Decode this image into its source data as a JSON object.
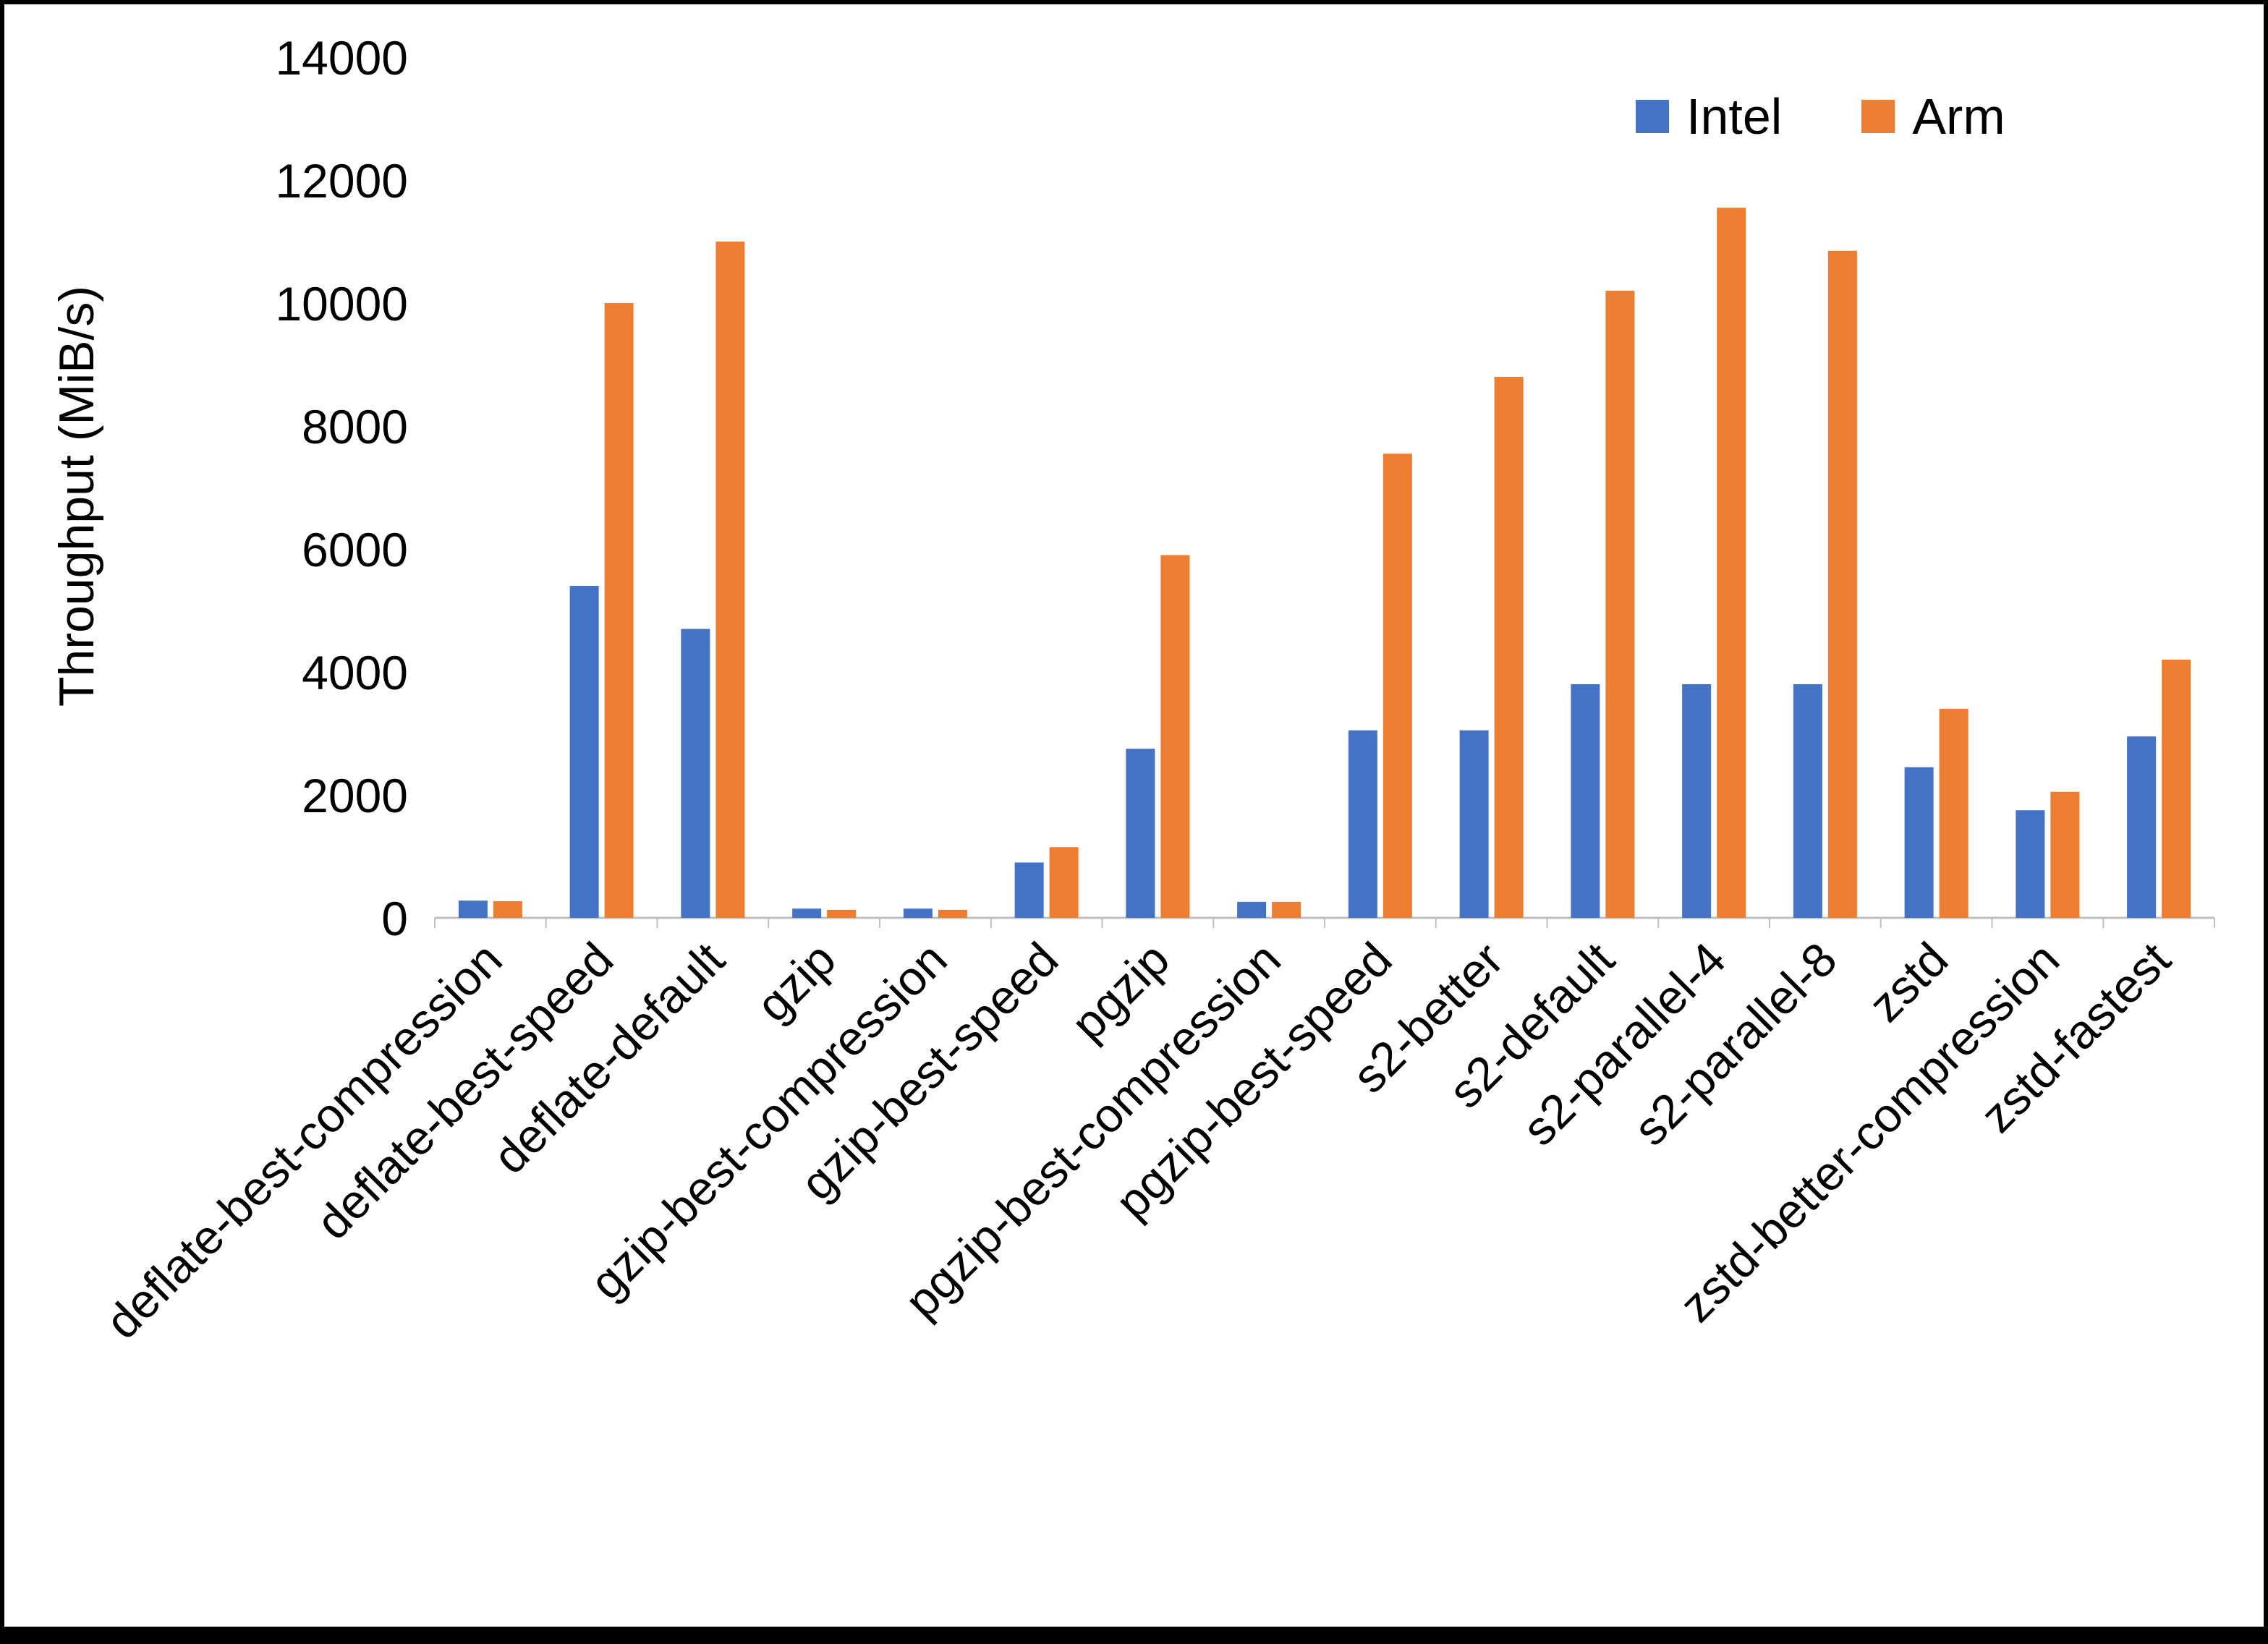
{
  "chart_data": {
    "type": "bar",
    "title": "",
    "xlabel": "",
    "ylabel": "Throughput (MiB/s)",
    "ylim": [
      0,
      14000
    ],
    "yticks": [
      0,
      2000,
      4000,
      6000,
      8000,
      10000,
      12000,
      14000
    ],
    "grid": false,
    "legend_position": "top-right",
    "categories": [
      "deflate-best-compression",
      "deflate-best-speed",
      "deflate-default",
      "gzip",
      "gzip-best-compression",
      "gzip-best-speed",
      "pgzip",
      "pgzip-best-compression",
      "pgzip-best-speed",
      "s2-better",
      "s2-default",
      "s2-parallel-4",
      "s2-parallel-8",
      "zstd",
      "zstd-better-compression",
      "zstd-fastest"
    ],
    "series": [
      {
        "name": "Intel",
        "color": "#4472C4",
        "values": [
          280,
          5400,
          4700,
          150,
          150,
          900,
          2750,
          260,
          3050,
          3050,
          3800,
          3800,
          3800,
          2450,
          1750,
          2950
        ]
      },
      {
        "name": "Arm",
        "color": "#ED7D31",
        "values": [
          270,
          10000,
          11000,
          130,
          130,
          1150,
          5900,
          260,
          7550,
          8800,
          10200,
          11550,
          10850,
          3400,
          2050,
          4200
        ]
      }
    ],
    "axis_color": "#BFBFBF",
    "text_color": "#000000"
  }
}
